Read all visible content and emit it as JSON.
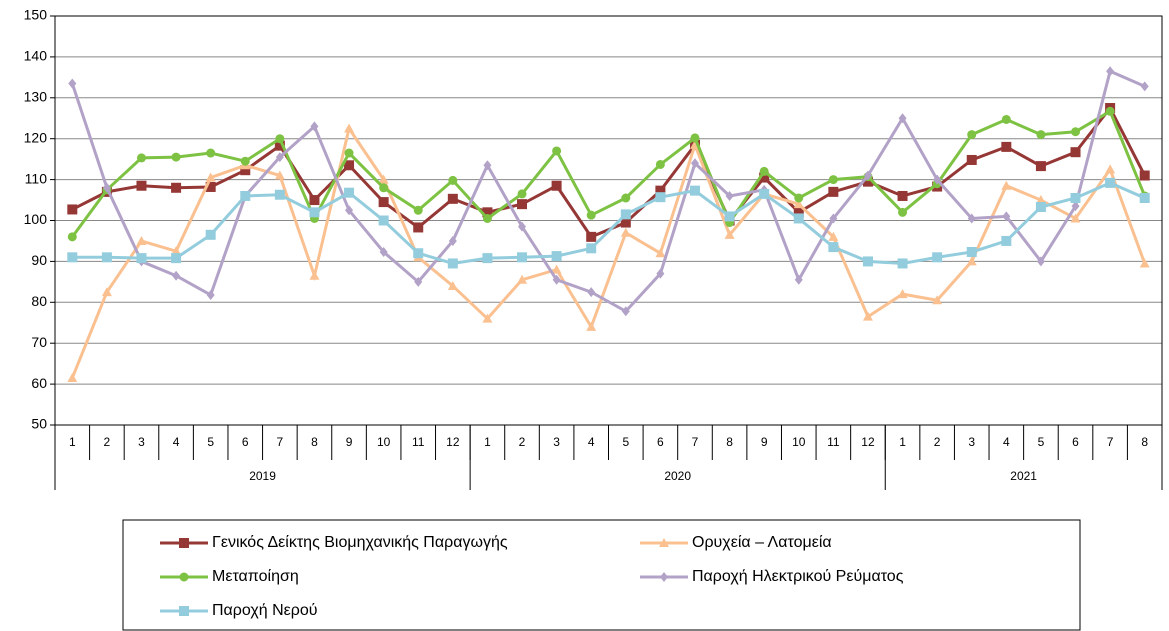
{
  "chart_data": {
    "type": "line",
    "category_groups": [
      {
        "label": "2019",
        "categories": [
          "1",
          "2",
          "3",
          "4",
          "5",
          "6",
          "7",
          "8",
          "9",
          "10",
          "11",
          "12"
        ]
      },
      {
        "label": "2020",
        "categories": [
          "1",
          "2",
          "3",
          "4",
          "5",
          "6",
          "7",
          "8",
          "9",
          "10",
          "11",
          "12"
        ]
      },
      {
        "label": "2021",
        "categories": [
          "1",
          "2",
          "3",
          "4",
          "5",
          "6",
          "7",
          "8"
        ]
      }
    ],
    "ylim": [
      50,
      150
    ],
    "yticks": [
      50,
      60,
      70,
      80,
      90,
      100,
      110,
      120,
      130,
      140,
      150
    ],
    "grid": true,
    "legend": "bottom",
    "series": [
      {
        "name": "Γενικός Δείκτης Βιομηχανικής Παραγωγής",
        "color": "#953735",
        "marker": "square",
        "values": [
          102.7,
          107,
          108.5,
          108,
          108.2,
          112.3,
          118.3,
          105,
          113.5,
          104.5,
          98.3,
          105.3,
          102,
          104,
          108.5,
          96,
          99.5,
          107.3,
          118.5,
          100,
          110.5,
          102,
          107,
          109.5,
          106,
          108.3,
          114.8,
          118,
          113.3,
          116.7,
          127.5,
          111
        ]
      },
      {
        "name": "Ορυχεία – Λατομεία",
        "color": "#fac090",
        "marker": "triangle",
        "values": [
          61.5,
          82.5,
          95,
          92.5,
          110.5,
          113.5,
          111,
          86.5,
          122.5,
          110,
          91,
          84,
          76,
          85.5,
          88,
          74,
          97,
          92,
          118.5,
          96.5,
          106.5,
          104,
          96,
          76.5,
          82,
          80.5,
          90,
          108.5,
          105,
          100.5,
          112.5,
          89.5
        ]
      },
      {
        "name": "Μεταποίηση",
        "color": "#7dc242",
        "marker": "circle",
        "values": [
          96,
          107.5,
          115.3,
          115.5,
          116.5,
          114.5,
          120,
          100.5,
          116.5,
          108,
          102.5,
          109.8,
          100.5,
          106.5,
          117,
          101.3,
          105.5,
          113.7,
          120.2,
          99.5,
          112,
          105.5,
          110,
          110.7,
          102,
          109,
          121,
          124.7,
          121,
          121.7,
          126.7,
          106
        ]
      },
      {
        "name": "Παροχή Ηλεκτρικού Ρεύματος",
        "color": "#b2a2c7",
        "marker": "diamond",
        "values": [
          133.5,
          108,
          90,
          86.5,
          81.8,
          106,
          115.5,
          123,
          102.5,
          92.3,
          85,
          95,
          113.5,
          98.5,
          85.5,
          82.5,
          77.8,
          87,
          114,
          106,
          107.5,
          85.5,
          100.5,
          111,
          125,
          110,
          100.5,
          101,
          90,
          103.5,
          136.5,
          132.8
        ]
      },
      {
        "name": "Παροχή Νερού",
        "color": "#93cddd",
        "marker": "square",
        "values": [
          91,
          91,
          90.8,
          90.8,
          96.5,
          106,
          106.3,
          102,
          106.8,
          100,
          92,
          89.5,
          90.8,
          91,
          91.3,
          93.2,
          101.5,
          105.7,
          107.3,
          101,
          106.5,
          100.5,
          93.5,
          90,
          89.5,
          91,
          92.3,
          95,
          103.3,
          105.5,
          109.2,
          105.5
        ]
      }
    ]
  }
}
